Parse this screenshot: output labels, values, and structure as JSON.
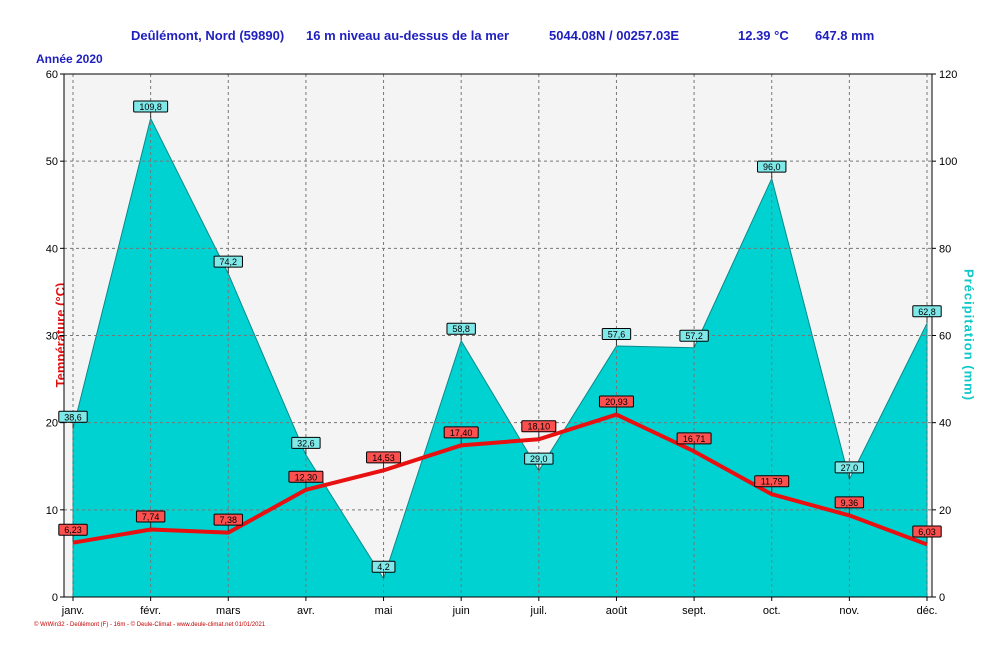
{
  "header": {
    "station": "Deûlémont, Nord (59890)",
    "altitude": "16 m niveau au-dessus de la mer",
    "coords": "5044.08N / 00257.03E",
    "mean_temp": "12.39 °C",
    "total_precip": "647.8 mm"
  },
  "year_label": "Année 2020",
  "footer": "© WrWin32 - Deûlémont (F) - 16m - © Deule-Climat - www.deule-climat.net 01/01/2021",
  "colors": {
    "temperature": "#e81010",
    "precip_fill": "#00d2d2",
    "precip_text": "#10c8c8",
    "header_text": "#1f1fbf",
    "plot_bg": "#f4f4f4"
  },
  "chart_data": {
    "type": "line+area",
    "categories": [
      "janv.",
      "févr.",
      "mars",
      "avr.",
      "mai",
      "juin",
      "juil.",
      "août",
      "sept.",
      "oct.",
      "nov.",
      "déc."
    ],
    "series": [
      {
        "name": "Température (°C)",
        "axis": "left",
        "kind": "line",
        "values": [
          6.23,
          7.74,
          7.38,
          12.3,
          14.53,
          17.4,
          18.1,
          20.93,
          16.71,
          11.79,
          9.36,
          6.03
        ],
        "labels": [
          "6,23",
          "7,74",
          "7,38",
          "12,30",
          "14,53",
          "17,40",
          "18,10",
          "20,93",
          "16,71",
          "11,79",
          "9,36",
          "6,03"
        ]
      },
      {
        "name": "Précipitation (mm)",
        "axis": "right",
        "kind": "area",
        "values": [
          38.6,
          109.8,
          74.2,
          32.6,
          4.2,
          58.8,
          29.0,
          57.6,
          57.2,
          96.0,
          27.0,
          62.8
        ],
        "labels": [
          "38,6",
          "109,8",
          "74,2",
          "32,6",
          "4,2",
          "58,8",
          "29,0",
          "57,6",
          "57,2",
          "96,0",
          "27,0",
          "62,8"
        ]
      }
    ],
    "ylabel_left": "Température  (°C)",
    "ylabel_right": "Précipitation  (mm)",
    "ylim_left": [
      0,
      60
    ],
    "ylim_right": [
      0,
      120
    ],
    "yticks_left": [
      0,
      10,
      20,
      30,
      40,
      50,
      60
    ],
    "yticks_right": [
      0,
      20,
      40,
      60,
      80,
      100,
      120
    ],
    "grid": true
  }
}
